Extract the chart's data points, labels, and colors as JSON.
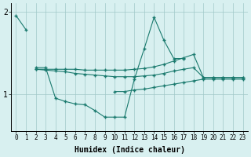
{
  "x_ticks": [
    0,
    1,
    2,
    3,
    4,
    5,
    6,
    7,
    8,
    9,
    10,
    11,
    12,
    13,
    14,
    15,
    16,
    17,
    18,
    19,
    20,
    21,
    22,
    23
  ],
  "color": "#1a7a6e",
  "bg_color": "#d8f0f0",
  "grid_color": "#a0c8c8",
  "xlabel": "Humidex (Indice chaleur)",
  "ylim": [
    0.55,
    2.1
  ],
  "yticks": [
    1,
    2
  ],
  "xlim": [
    -0.5,
    23.5
  ],
  "lines": [
    {
      "x": [
        0,
        1
      ],
      "y": [
        1.95,
        1.78
      ]
    },
    {
      "x": [
        2,
        3,
        4,
        5,
        6,
        7,
        8,
        9,
        10,
        11,
        12,
        13,
        14,
        15,
        16,
        17
      ],
      "y": [
        1.32,
        1.32,
        0.95,
        0.91,
        0.88,
        0.87,
        0.8,
        0.72,
        0.72,
        0.72,
        1.18,
        1.55,
        1.93,
        1.65,
        1.43,
        1.43
      ]
    },
    {
      "x": [
        2,
        3,
        4,
        5,
        6,
        7,
        8,
        9,
        10,
        11,
        12,
        13,
        14,
        15,
        16,
        17,
        18,
        19,
        20,
        21,
        22,
        23
      ],
      "y": [
        1.3,
        1.29,
        1.28,
        1.27,
        1.25,
        1.24,
        1.23,
        1.22,
        1.21,
        1.21,
        1.21,
        1.22,
        1.23,
        1.25,
        1.28,
        1.3,
        1.32,
        1.2,
        1.2,
        1.2,
        1.2,
        1.2
      ]
    },
    {
      "x": [
        2,
        3,
        4,
        5,
        6,
        7,
        8,
        9,
        10,
        11,
        12,
        13,
        14,
        15,
        16,
        17,
        18,
        19,
        20,
        21,
        22,
        23
      ],
      "y": [
        1.3,
        1.3,
        1.3,
        1.3,
        1.3,
        1.29,
        1.29,
        1.29,
        1.29,
        1.29,
        1.3,
        1.31,
        1.33,
        1.36,
        1.4,
        1.44,
        1.48,
        1.2,
        1.2,
        1.2,
        1.2,
        1.2
      ]
    },
    {
      "x": [
        10,
        11,
        12,
        13,
        14,
        15,
        16,
        17,
        18,
        19,
        20,
        21,
        22,
        23
      ],
      "y": [
        1.03,
        1.03,
        1.05,
        1.06,
        1.08,
        1.1,
        1.12,
        1.14,
        1.16,
        1.18,
        1.18,
        1.18,
        1.18,
        1.18
      ]
    }
  ]
}
